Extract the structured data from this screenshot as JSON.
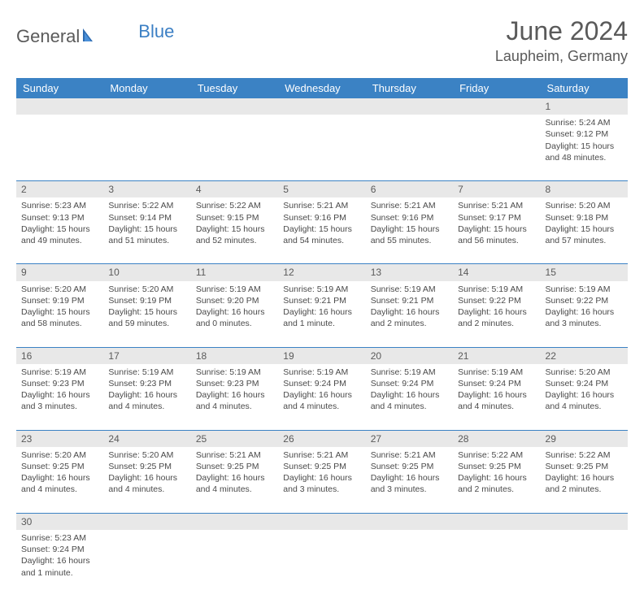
{
  "logo": {
    "text1": "General",
    "text2": "Blue"
  },
  "title": "June 2024",
  "location": "Laupheim, Germany",
  "colors": {
    "header_bg": "#3b82c4",
    "header_text": "#ffffff",
    "daynum_bg": "#e8e8e8",
    "body_text": "#4a4a4a",
    "title_text": "#5a5a5a"
  },
  "daynames": [
    "Sunday",
    "Monday",
    "Tuesday",
    "Wednesday",
    "Thursday",
    "Friday",
    "Saturday"
  ],
  "weeks": [
    [
      null,
      null,
      null,
      null,
      null,
      null,
      {
        "n": "1",
        "sr": "Sunrise: 5:24 AM",
        "ss": "Sunset: 9:12 PM",
        "dl": "Daylight: 15 hours and 48 minutes."
      }
    ],
    [
      {
        "n": "2",
        "sr": "Sunrise: 5:23 AM",
        "ss": "Sunset: 9:13 PM",
        "dl": "Daylight: 15 hours and 49 minutes."
      },
      {
        "n": "3",
        "sr": "Sunrise: 5:22 AM",
        "ss": "Sunset: 9:14 PM",
        "dl": "Daylight: 15 hours and 51 minutes."
      },
      {
        "n": "4",
        "sr": "Sunrise: 5:22 AM",
        "ss": "Sunset: 9:15 PM",
        "dl": "Daylight: 15 hours and 52 minutes."
      },
      {
        "n": "5",
        "sr": "Sunrise: 5:21 AM",
        "ss": "Sunset: 9:16 PM",
        "dl": "Daylight: 15 hours and 54 minutes."
      },
      {
        "n": "6",
        "sr": "Sunrise: 5:21 AM",
        "ss": "Sunset: 9:16 PM",
        "dl": "Daylight: 15 hours and 55 minutes."
      },
      {
        "n": "7",
        "sr": "Sunrise: 5:21 AM",
        "ss": "Sunset: 9:17 PM",
        "dl": "Daylight: 15 hours and 56 minutes."
      },
      {
        "n": "8",
        "sr": "Sunrise: 5:20 AM",
        "ss": "Sunset: 9:18 PM",
        "dl": "Daylight: 15 hours and 57 minutes."
      }
    ],
    [
      {
        "n": "9",
        "sr": "Sunrise: 5:20 AM",
        "ss": "Sunset: 9:19 PM",
        "dl": "Daylight: 15 hours and 58 minutes."
      },
      {
        "n": "10",
        "sr": "Sunrise: 5:20 AM",
        "ss": "Sunset: 9:19 PM",
        "dl": "Daylight: 15 hours and 59 minutes."
      },
      {
        "n": "11",
        "sr": "Sunrise: 5:19 AM",
        "ss": "Sunset: 9:20 PM",
        "dl": "Daylight: 16 hours and 0 minutes."
      },
      {
        "n": "12",
        "sr": "Sunrise: 5:19 AM",
        "ss": "Sunset: 9:21 PM",
        "dl": "Daylight: 16 hours and 1 minute."
      },
      {
        "n": "13",
        "sr": "Sunrise: 5:19 AM",
        "ss": "Sunset: 9:21 PM",
        "dl": "Daylight: 16 hours and 2 minutes."
      },
      {
        "n": "14",
        "sr": "Sunrise: 5:19 AM",
        "ss": "Sunset: 9:22 PM",
        "dl": "Daylight: 16 hours and 2 minutes."
      },
      {
        "n": "15",
        "sr": "Sunrise: 5:19 AM",
        "ss": "Sunset: 9:22 PM",
        "dl": "Daylight: 16 hours and 3 minutes."
      }
    ],
    [
      {
        "n": "16",
        "sr": "Sunrise: 5:19 AM",
        "ss": "Sunset: 9:23 PM",
        "dl": "Daylight: 16 hours and 3 minutes."
      },
      {
        "n": "17",
        "sr": "Sunrise: 5:19 AM",
        "ss": "Sunset: 9:23 PM",
        "dl": "Daylight: 16 hours and 4 minutes."
      },
      {
        "n": "18",
        "sr": "Sunrise: 5:19 AM",
        "ss": "Sunset: 9:23 PM",
        "dl": "Daylight: 16 hours and 4 minutes."
      },
      {
        "n": "19",
        "sr": "Sunrise: 5:19 AM",
        "ss": "Sunset: 9:24 PM",
        "dl": "Daylight: 16 hours and 4 minutes."
      },
      {
        "n": "20",
        "sr": "Sunrise: 5:19 AM",
        "ss": "Sunset: 9:24 PM",
        "dl": "Daylight: 16 hours and 4 minutes."
      },
      {
        "n": "21",
        "sr": "Sunrise: 5:19 AM",
        "ss": "Sunset: 9:24 PM",
        "dl": "Daylight: 16 hours and 4 minutes."
      },
      {
        "n": "22",
        "sr": "Sunrise: 5:20 AM",
        "ss": "Sunset: 9:24 PM",
        "dl": "Daylight: 16 hours and 4 minutes."
      }
    ],
    [
      {
        "n": "23",
        "sr": "Sunrise: 5:20 AM",
        "ss": "Sunset: 9:25 PM",
        "dl": "Daylight: 16 hours and 4 minutes."
      },
      {
        "n": "24",
        "sr": "Sunrise: 5:20 AM",
        "ss": "Sunset: 9:25 PM",
        "dl": "Daylight: 16 hours and 4 minutes."
      },
      {
        "n": "25",
        "sr": "Sunrise: 5:21 AM",
        "ss": "Sunset: 9:25 PM",
        "dl": "Daylight: 16 hours and 4 minutes."
      },
      {
        "n": "26",
        "sr": "Sunrise: 5:21 AM",
        "ss": "Sunset: 9:25 PM",
        "dl": "Daylight: 16 hours and 3 minutes."
      },
      {
        "n": "27",
        "sr": "Sunrise: 5:21 AM",
        "ss": "Sunset: 9:25 PM",
        "dl": "Daylight: 16 hours and 3 minutes."
      },
      {
        "n": "28",
        "sr": "Sunrise: 5:22 AM",
        "ss": "Sunset: 9:25 PM",
        "dl": "Daylight: 16 hours and 2 minutes."
      },
      {
        "n": "29",
        "sr": "Sunrise: 5:22 AM",
        "ss": "Sunset: 9:25 PM",
        "dl": "Daylight: 16 hours and 2 minutes."
      }
    ],
    [
      {
        "n": "30",
        "sr": "Sunrise: 5:23 AM",
        "ss": "Sunset: 9:24 PM",
        "dl": "Daylight: 16 hours and 1 minute."
      },
      null,
      null,
      null,
      null,
      null,
      null
    ]
  ]
}
